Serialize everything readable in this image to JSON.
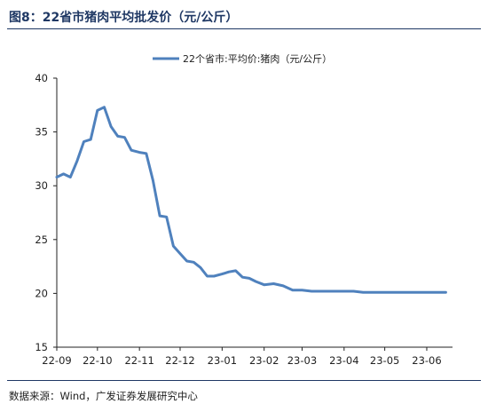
{
  "figure": {
    "title": "图8：22省市猪肉平均批发价（元/公斤）",
    "source": "数据来源：Wind，广发证券发展研究中心"
  },
  "chart_data": {
    "type": "line",
    "x": [
      "2022-09-01",
      "2022-09-06",
      "2022-09-11",
      "2022-09-16",
      "2022-09-21",
      "2022-09-26",
      "2022-10-01",
      "2022-10-06",
      "2022-10-11",
      "2022-10-16",
      "2022-10-21",
      "2022-10-26",
      "2022-11-01",
      "2022-11-06",
      "2022-11-11",
      "2022-11-16",
      "2022-11-21",
      "2022-11-26",
      "2022-12-01",
      "2022-12-06",
      "2022-12-11",
      "2022-12-16",
      "2022-12-21",
      "2022-12-26",
      "2023-01-01",
      "2023-01-06",
      "2023-01-11",
      "2023-01-16",
      "2023-01-21",
      "2023-01-26",
      "2023-02-01",
      "2023-02-08",
      "2023-02-15",
      "2023-02-22",
      "2023-03-01",
      "2023-03-08",
      "2023-03-15",
      "2023-03-22",
      "2023-04-01",
      "2023-04-08",
      "2023-04-15",
      "2023-04-22",
      "2023-05-01",
      "2023-05-08",
      "2023-05-15",
      "2023-05-22",
      "2023-06-01",
      "2023-06-08",
      "2023-06-15"
    ],
    "series": [
      {
        "name": "22个省市:平均价:猪肉（元/公斤）",
        "values": [
          30.8,
          31.1,
          30.8,
          32.3,
          34.1,
          34.3,
          37.0,
          37.3,
          35.5,
          34.6,
          34.5,
          33.3,
          33.1,
          33.0,
          30.5,
          27.2,
          27.1,
          24.4,
          23.7,
          23.0,
          22.9,
          22.4,
          21.6,
          21.6,
          21.8,
          22.0,
          22.1,
          21.5,
          21.4,
          21.1,
          20.8,
          20.9,
          20.7,
          20.3,
          20.3,
          20.2,
          20.2,
          20.2,
          20.2,
          20.2,
          20.1,
          20.1,
          20.1,
          20.1,
          20.1,
          20.1,
          20.1,
          20.1,
          20.1
        ]
      }
    ],
    "x_tick_labels": [
      "22-09",
      "22-10",
      "22-11",
      "22-12",
      "23-01",
      "23-02",
      "23-03",
      "23-04",
      "23-05",
      "23-06"
    ],
    "ylim": [
      15,
      40
    ],
    "y_ticks": [
      15,
      20,
      25,
      30,
      35,
      40
    ],
    "grid": false,
    "legend_position": "top-center",
    "line_color": "#4f81bd"
  }
}
